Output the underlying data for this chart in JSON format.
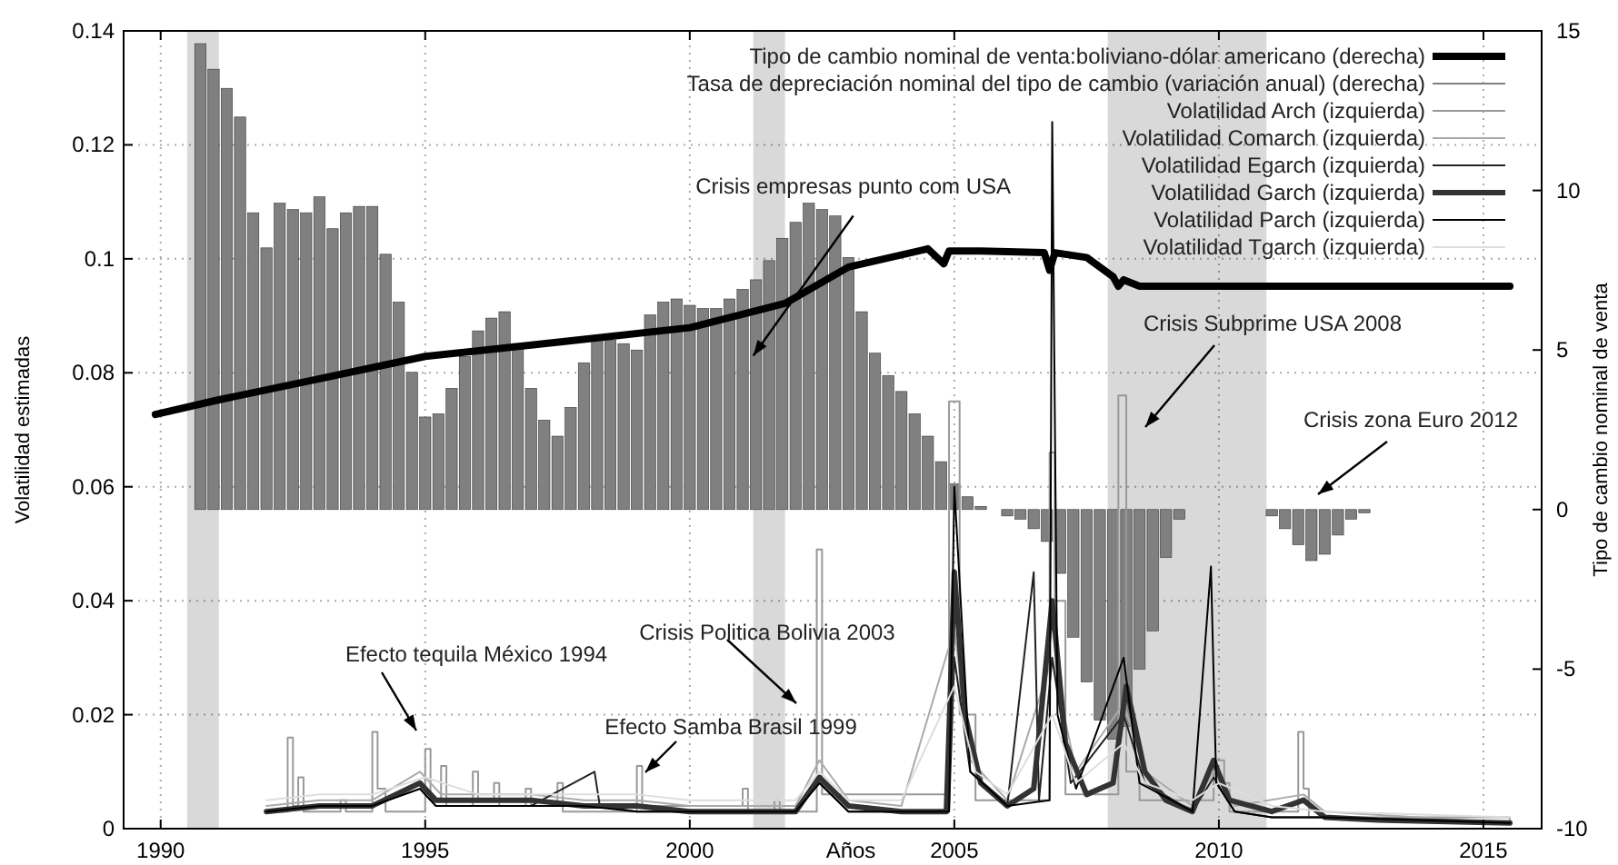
{
  "chart_data": {
    "type": "line",
    "xlabel": "Años",
    "ylabel": "Volatilidad estimadas",
    "y2label": "Tipo de cambio nominal de venta",
    "xlim": [
      1989.3,
      2016.1
    ],
    "xticks": [
      1990,
      1995,
      2000,
      2005,
      2010,
      2015
    ],
    "ylim": [
      0,
      0.14
    ],
    "yticks": [
      0,
      0.02,
      0.04,
      0.06,
      0.08,
      0.1,
      0.12,
      0.14
    ],
    "y2lim": [
      -10,
      15
    ],
    "y2ticks": [
      -10,
      -5,
      0,
      5,
      10,
      15
    ],
    "grid": true,
    "legend": "top right",
    "bands": [
      {
        "axis": "x",
        "from": 1990.5,
        "to": 1991.1
      },
      {
        "axis": "x",
        "from": 2001.2,
        "to": 2001.8
      },
      {
        "axis": "x",
        "from": 2007.9,
        "to": 2010.9
      }
    ],
    "annotations": [
      {
        "text": "Crisis empresas punto com USA",
        "x": 2001.2,
        "y": 0.083
      },
      "Crisis Subprime USA 2008",
      "Crisis zona Euro 2012",
      "Efecto tequila México 1994",
      "Crisis Politica Bolivia 2003",
      "Efecto Samba Brasil 1999"
    ],
    "series": [
      {
        "name": "Tipo de cambio nominal de venta:boliviano-dólar americano (derecha)",
        "axis": "y2",
        "color": "#000000",
        "x": [
          1989.9,
          1991.1,
          1993.0,
          1995.0,
          1997.6,
          2000.0,
          2001.8,
          2003.0,
          2004.5,
          2004.8,
          2004.9,
          2005.5,
          2006.7,
          2006.8,
          2006.9,
          2007.5,
          2008.0,
          2008.1,
          2008.2,
          2008.5,
          2015.5
        ],
        "values": [
          2.98,
          3.44,
          4.1,
          4.8,
          5.26,
          5.7,
          6.46,
          7.6,
          8.17,
          7.7,
          8.1,
          8.1,
          8.05,
          7.5,
          8.05,
          7.9,
          7.3,
          7.0,
          7.2,
          7.0,
          7.0
        ]
      },
      {
        "name": "Tasa de depreciación nominal del tipo de cambio (variación anual) (derecha)",
        "type": "bar",
        "axis": "y2",
        "color": "#808080",
        "x": [
          1990.75,
          1991.0,
          1991.25,
          1991.5,
          1991.75,
          1992.0,
          1992.25,
          1992.5,
          1992.75,
          1993.0,
          1993.25,
          1993.5,
          1993.75,
          1994.0,
          1994.25,
          1994.5,
          1994.75,
          1995.0,
          1995.25,
          1995.5,
          1995.75,
          1996.0,
          1996.25,
          1996.5,
          1996.75,
          1997.0,
          1997.25,
          1997.5,
          1997.75,
          1998.0,
          1998.25,
          1998.5,
          1998.75,
          1999.0,
          1999.25,
          1999.5,
          1999.75,
          2000.0,
          2000.25,
          2000.5,
          2000.75,
          2001.0,
          2001.25,
          2001.5,
          2001.75,
          2002.0,
          2002.25,
          2002.5,
          2002.75,
          2003.0,
          2003.25,
          2003.5,
          2003.75,
          2004.0,
          2004.25,
          2004.5,
          2004.75,
          2005.0,
          2005.25,
          2005.5,
          2006.0,
          2006.25,
          2006.5,
          2006.75,
          2007.0,
          2007.25,
          2007.5,
          2007.75,
          2008.0,
          2008.25,
          2008.5,
          2008.75,
          2009.0,
          2009.25,
          2011.0,
          2011.25,
          2011.5,
          2011.75,
          2012.0,
          2012.25,
          2012.5,
          2012.75
        ],
        "values": [
          14.6,
          13.8,
          13.2,
          12.3,
          9.3,
          8.2,
          9.6,
          9.4,
          9.3,
          9.8,
          8.8,
          9.3,
          9.5,
          9.5,
          8.0,
          6.5,
          4.3,
          2.9,
          3.0,
          3.8,
          4.8,
          5.6,
          6.0,
          6.2,
          5.2,
          3.8,
          2.8,
          2.3,
          3.2,
          4.6,
          5.3,
          5.3,
          5.2,
          5.0,
          6.1,
          6.5,
          6.6,
          6.4,
          6.3,
          6.3,
          6.6,
          6.9,
          7.2,
          7.8,
          8.5,
          9.0,
          9.6,
          9.4,
          9.2,
          7.9,
          6.2,
          4.9,
          4.2,
          3.7,
          3.0,
          2.3,
          1.5,
          0.8,
          0.4,
          0.1,
          -0.2,
          -0.3,
          -0.6,
          -1.0,
          -2.0,
          -4.0,
          -5.4,
          -6.6,
          -7.2,
          -6.8,
          -5.0,
          -3.8,
          -1.5,
          -0.3,
          -0.2,
          -0.6,
          -1.1,
          -1.6,
          -1.4,
          -0.8,
          -0.3,
          -0.1
        ]
      },
      {
        "name": "Volatilidad Arch (izquierda)",
        "type": "step",
        "color": "#999999",
        "x": [
          1992.0,
          1992.4,
          1992.5,
          1992.6,
          1992.7,
          1993.4,
          1993.5,
          1994.0,
          1994.1,
          1994.25,
          1995.0,
          1995.1,
          1995.3,
          1995.4,
          1995.9,
          1996.0,
          1996.3,
          1996.4,
          1996.9,
          1997.0,
          1997.5,
          1997.6,
          1999.0,
          1999.1,
          1999.7,
          2001.0,
          2001.1,
          2001.6,
          2001.7,
          2002.4,
          2002.5,
          2004.9,
          2005.1,
          2005.4,
          2006.8,
          2006.9,
          2007.1,
          2008.1,
          2008.25,
          2008.5,
          2009.9,
          2010.1,
          2010.2,
          2011.5,
          2011.6,
          2011.7,
          2015.5
        ],
        "values": [
          0.003,
          0.016,
          0.004,
          0.009,
          0.003,
          0.005,
          0.003,
          0.017,
          0.007,
          0.003,
          0.014,
          0.005,
          0.011,
          0.004,
          0.01,
          0.005,
          0.008,
          0.004,
          0.007,
          0.004,
          0.008,
          0.003,
          0.011,
          0.004,
          0.004,
          0.007,
          0.003,
          0.005,
          0.003,
          0.049,
          0.006,
          0.075,
          0.02,
          0.005,
          0.066,
          0.04,
          0.006,
          0.076,
          0.01,
          0.005,
          0.012,
          0.008,
          0.003,
          0.017,
          0.007,
          0.002,
          0.001
        ]
      },
      {
        "name": "Volatilidad Comarch (izquierda)",
        "color": "#aaaaaa",
        "x": [
          1992.0,
          1993.0,
          1994.0,
          1994.9,
          1995.3,
          1996.0,
          1997.0,
          1998.0,
          1999.0,
          2000.0,
          2001.0,
          2002.0,
          2002.45,
          2003.0,
          2004.0,
          2005.0,
          2005.3,
          2006.0,
          2006.85,
          2007.3,
          2008.2,
          2008.6,
          2009.5,
          2009.9,
          2010.3,
          2011.6,
          2012.0,
          2015.5
        ],
        "values": [
          0.004,
          0.005,
          0.005,
          0.01,
          0.006,
          0.006,
          0.006,
          0.005,
          0.005,
          0.004,
          0.004,
          0.004,
          0.012,
          0.005,
          0.004,
          0.035,
          0.012,
          0.005,
          0.03,
          0.01,
          0.022,
          0.01,
          0.004,
          0.01,
          0.004,
          0.006,
          0.003,
          0.001
        ]
      },
      {
        "name": "Volatilidad Egarch (izquierda)",
        "color": "#222222",
        "x": [
          1992.0,
          1993.0,
          1994.0,
          1994.9,
          1995.2,
          1996.0,
          1997.0,
          1998.2,
          1998.3,
          1999.0,
          2000.0,
          2001.0,
          2002.0,
          2002.45,
          2003.0,
          2004.0,
          2004.9,
          2005.0,
          2005.3,
          2006.0,
          2006.5,
          2006.6,
          2006.85,
          2007.2,
          2008.2,
          2008.6,
          2009.5,
          2009.9,
          2010.3,
          2011.0,
          2012.0,
          2015.5
        ],
        "values": [
          0.003,
          0.004,
          0.004,
          0.007,
          0.004,
          0.004,
          0.004,
          0.01,
          0.004,
          0.003,
          0.003,
          0.003,
          0.003,
          0.008,
          0.003,
          0.003,
          0.003,
          0.03,
          0.01,
          0.004,
          0.045,
          0.005,
          0.03,
          0.008,
          0.02,
          0.008,
          0.003,
          0.009,
          0.003,
          0.002,
          0.002,
          0.001
        ]
      },
      {
        "name": "Volatilidad Garch (izquierda)",
        "color": "#333333",
        "x": [
          1992.0,
          1993.0,
          1994.0,
          1994.9,
          1995.2,
          1996.0,
          1997.0,
          1998.0,
          1999.0,
          2000.0,
          2001.0,
          2002.0,
          2002.45,
          2003.0,
          2004.0,
          2004.85,
          2005.0,
          2005.2,
          2005.5,
          2006.0,
          2006.5,
          2006.85,
          2007.1,
          2007.5,
          2008.0,
          2008.25,
          2008.6,
          2009.0,
          2009.5,
          2009.9,
          2010.2,
          2011.0,
          2011.6,
          2012.0,
          2013.0,
          2015.5
        ],
        "values": [
          0.003,
          0.004,
          0.004,
          0.008,
          0.005,
          0.005,
          0.005,
          0.004,
          0.004,
          0.003,
          0.003,
          0.003,
          0.009,
          0.004,
          0.003,
          0.003,
          0.045,
          0.02,
          0.008,
          0.004,
          0.007,
          0.04,
          0.015,
          0.006,
          0.008,
          0.025,
          0.01,
          0.005,
          0.003,
          0.012,
          0.005,
          0.003,
          0.005,
          0.002,
          0.0015,
          0.001
        ]
      },
      {
        "name": "Volatilidad Parch (izquierda)",
        "color": "#000000",
        "x": [
          1992.0,
          1993.0,
          1994.0,
          1994.9,
          1995.2,
          1996.0,
          1997.0,
          1998.0,
          1999.0,
          2000.0,
          2001.0,
          2002.0,
          2002.45,
          2003.0,
          2004.0,
          2004.9,
          2005.0,
          2005.3,
          2006.0,
          2006.8,
          2006.85,
          2006.95,
          2007.3,
          2008.2,
          2008.5,
          2009.5,
          2009.85,
          2009.95,
          2010.3,
          2011.0,
          2012.0,
          2015.5
        ],
        "values": [
          0.003,
          0.004,
          0.004,
          0.007,
          0.004,
          0.004,
          0.004,
          0.004,
          0.003,
          0.003,
          0.003,
          0.003,
          0.008,
          0.003,
          0.003,
          0.003,
          0.06,
          0.01,
          0.004,
          0.005,
          0.124,
          0.02,
          0.007,
          0.03,
          0.008,
          0.003,
          0.046,
          0.008,
          0.003,
          0.002,
          0.002,
          0.001
        ]
      },
      {
        "name": "Volatilidad Tgarch (izquierda)",
        "color": "#dddddd",
        "x": [
          1992.0,
          1993.0,
          1994.0,
          1995.0,
          1996.0,
          1997.0,
          1998.0,
          1999.0,
          2000.0,
          2001.0,
          2002.0,
          2002.45,
          2003.0,
          2004.0,
          2005.0,
          2005.4,
          2006.0,
          2006.85,
          2007.3,
          2008.2,
          2008.6,
          2009.5,
          2010.0,
          2011.0,
          2012.0,
          2015.5
        ],
        "values": [
          0.005,
          0.006,
          0.006,
          0.009,
          0.006,
          0.006,
          0.006,
          0.006,
          0.005,
          0.005,
          0.005,
          0.01,
          0.005,
          0.005,
          0.025,
          0.01,
          0.006,
          0.02,
          0.008,
          0.015,
          0.008,
          0.005,
          0.008,
          0.004,
          0.003,
          0.002
        ]
      }
    ]
  }
}
